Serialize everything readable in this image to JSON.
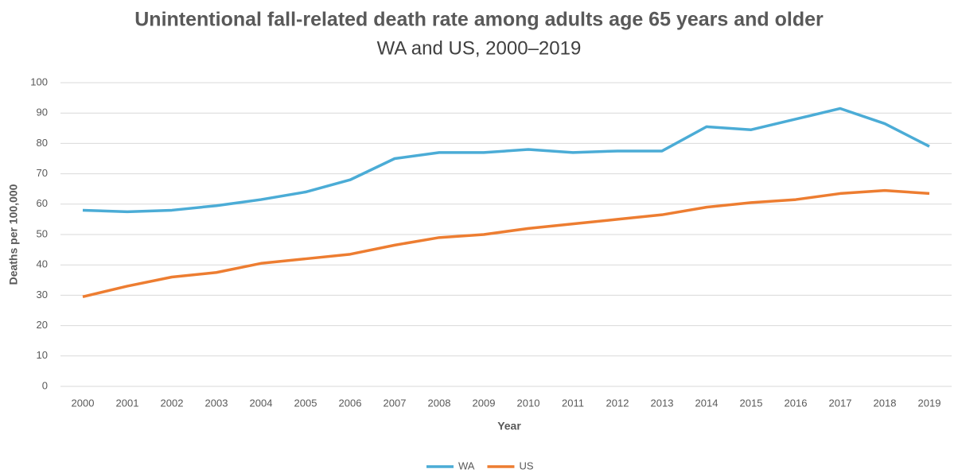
{
  "chart_data": {
    "type": "line",
    "title": "Unintentional fall-related death rate among adults age 65 years and older",
    "subtitle": "WA and US, 2000–2019",
    "x_label": "Year",
    "y_label": "Deaths per 100,000",
    "categories": [
      "2000",
      "2001",
      "2002",
      "2003",
      "2004",
      "2005",
      "2006",
      "2007",
      "2008",
      "2009",
      "2010",
      "2011",
      "2012",
      "2013",
      "2014",
      "2015",
      "2016",
      "2017",
      "2018",
      "2019"
    ],
    "series": [
      {
        "name": "WA",
        "color": "#4bacd6",
        "values": [
          58,
          57.5,
          58,
          59.5,
          61.5,
          64,
          68,
          75,
          77,
          77,
          78,
          77,
          77.5,
          77.5,
          85.5,
          84.5,
          88,
          91.5,
          86.5,
          79
        ]
      },
      {
        "name": "US",
        "color": "#ed7d31",
        "values": [
          29.5,
          33,
          36,
          37.5,
          40.5,
          42,
          43.5,
          46.5,
          49,
          50,
          52,
          53.5,
          55,
          56.5,
          59,
          60.5,
          61.5,
          63.5,
          64.5,
          63.5
        ]
      }
    ],
    "ylim": [
      0,
      100
    ],
    "yticks": [
      0,
      10,
      20,
      30,
      40,
      50,
      60,
      70,
      80,
      90,
      100
    ],
    "grid": true,
    "legend": "bottom"
  }
}
